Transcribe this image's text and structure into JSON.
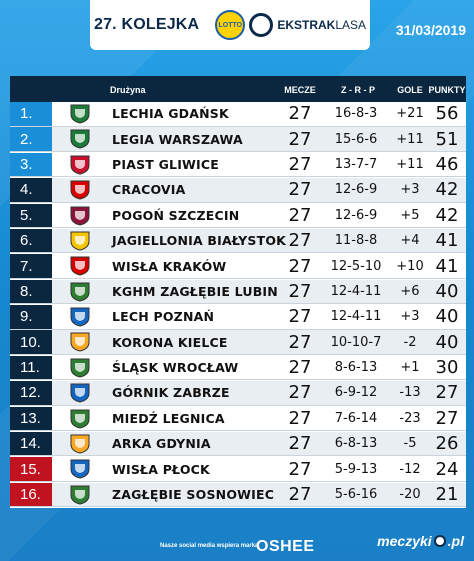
{
  "header": {
    "round": "27. KOLEJKA",
    "sponsor_logo": "LOTTO",
    "league_bold": "EKSTRAK",
    "league_light": "LASA",
    "date": "31/03/2019"
  },
  "columns": {
    "team": "Drużyna",
    "played": "MECZE",
    "wdl": "Z - R - P",
    "goals": "GOLE",
    "points": "PUNKTY"
  },
  "rows": [
    {
      "pos": "1.",
      "team": "LECHIA GDAŃSK",
      "played": "27",
      "wdl": "16-8-3",
      "goals": "+21",
      "points": "56",
      "zone": "top",
      "crest_color": "#1f7a3a"
    },
    {
      "pos": "2.",
      "team": "LEGIA WARSZAWA",
      "played": "27",
      "wdl": "15-6-6",
      "goals": "+11",
      "points": "51",
      "zone": "top",
      "crest_color": "#1a7a3a"
    },
    {
      "pos": "3.",
      "team": "PIAST GLIWICE",
      "played": "27",
      "wdl": "13-7-7",
      "goals": "+11",
      "points": "46",
      "zone": "top",
      "crest_color": "#c8102e"
    },
    {
      "pos": "4.",
      "team": "CRACOVIA",
      "played": "27",
      "wdl": "12-6-9",
      "goals": "+3",
      "points": "42",
      "zone": "mid",
      "crest_color": "#d50000"
    },
    {
      "pos": "5.",
      "team": "POGOŃ SZCZECIN",
      "played": "27",
      "wdl": "12-6-9",
      "goals": "+5",
      "points": "42",
      "zone": "mid",
      "crest_color": "#8b1538"
    },
    {
      "pos": "6.",
      "team": "JAGIELLONIA BIAŁYSTOK",
      "played": "27",
      "wdl": "11-8-8",
      "goals": "+4",
      "points": "41",
      "zone": "mid",
      "crest_color": "#f5c400"
    },
    {
      "pos": "7.",
      "team": "WISŁA KRAKÓW",
      "played": "27",
      "wdl": "12-5-10",
      "goals": "+10",
      "points": "41",
      "zone": "mid",
      "crest_color": "#d50000"
    },
    {
      "pos": "8.",
      "team": "KGHM ZAGŁĘBIE LUBIN",
      "played": "27",
      "wdl": "12-4-11",
      "goals": "+6",
      "points": "40",
      "zone": "mid",
      "crest_color": "#2e7d32"
    },
    {
      "pos": "9.",
      "team": "LECH POZNAŃ",
      "played": "27",
      "wdl": "12-4-11",
      "goals": "+3",
      "points": "40",
      "zone": "mid",
      "crest_color": "#1565c0"
    },
    {
      "pos": "10.",
      "team": "KORONA KIELCE",
      "played": "27",
      "wdl": "10-10-7",
      "goals": "-2",
      "points": "40",
      "zone": "mid",
      "crest_color": "#f9a825"
    },
    {
      "pos": "11.",
      "team": "ŚLĄSK WROCŁAW",
      "played": "27",
      "wdl": "8-6-13",
      "goals": "+1",
      "points": "30",
      "zone": "mid",
      "crest_color": "#2e7d32"
    },
    {
      "pos": "12.",
      "team": "GÓRNIK ZABRZE",
      "played": "27",
      "wdl": "6-9-12",
      "goals": "-13",
      "points": "27",
      "zone": "mid",
      "crest_color": "#1565c0"
    },
    {
      "pos": "13.",
      "team": "MIEDŹ LEGNICA",
      "played": "27",
      "wdl": "7-6-14",
      "goals": "-23",
      "points": "27",
      "zone": "mid",
      "crest_color": "#2e7d32"
    },
    {
      "pos": "14.",
      "team": "ARKA GDYNIA",
      "played": "27",
      "wdl": "6-8-13",
      "goals": "-5",
      "points": "26",
      "zone": "mid",
      "crest_color": "#f9a825"
    },
    {
      "pos": "15.",
      "team": "WISŁA PŁOCK",
      "played": "27",
      "wdl": "5-9-13",
      "goals": "-12",
      "points": "24",
      "zone": "rel",
      "crest_color": "#1565c0"
    },
    {
      "pos": "16.",
      "team": "ZAGŁĘBIE SOSNOWIEC",
      "played": "27",
      "wdl": "5-6-16",
      "goals": "-20",
      "points": "21",
      "zone": "rel",
      "crest_color": "#2e7d32"
    }
  ],
  "footer": {
    "text": "Nasze social media wspiera marka",
    "sponsor": "OSHEE",
    "brand_left": "meczyki",
    "brand_right": ".pl"
  }
}
